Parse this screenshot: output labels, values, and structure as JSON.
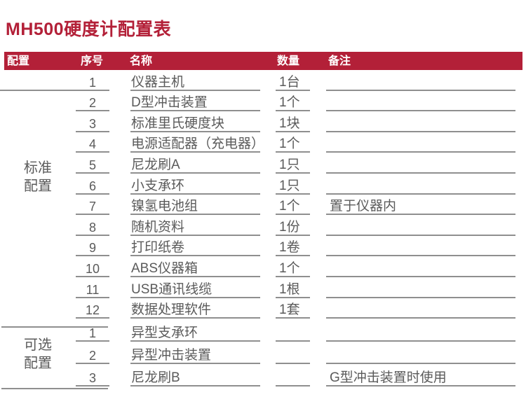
{
  "page": {
    "title": "MH500硬度计配置表"
  },
  "colors": {
    "accent_red": "#B32038",
    "text_gray": "#5A5A5A",
    "line_gray": "#8F8F8F",
    "header_text": "#FFFFFF"
  },
  "table": {
    "headers": [
      "配置",
      "序号",
      "名称",
      "数量",
      "备注"
    ],
    "groups": [
      {
        "label": "标准配置",
        "label_lines": [
          "标准",
          "配置"
        ],
        "rows": [
          {
            "no": "1",
            "name": "仪器主机",
            "qty": "1台",
            "note": ""
          },
          {
            "no": "2",
            "name": "D型冲击装置",
            "qty": "1个",
            "note": ""
          },
          {
            "no": "3",
            "name": "标准里氏硬度块",
            "qty": "1块",
            "note": ""
          },
          {
            "no": "4",
            "name": "电源适配器（充电器）",
            "qty": "1个",
            "note": ""
          },
          {
            "no": "5",
            "name": "尼龙刷A",
            "qty": "1只",
            "note": ""
          },
          {
            "no": "6",
            "name": "小支承环",
            "qty": "1只",
            "note": ""
          },
          {
            "no": "7",
            "name": "镍氢电池组",
            "qty": "1个",
            "note": "置于仪器内"
          },
          {
            "no": "8",
            "name": "随机资料",
            "qty": "1份",
            "note": ""
          },
          {
            "no": "9",
            "name": "打印纸卷",
            "qty": "1卷",
            "note": ""
          },
          {
            "no": "10",
            "name": "ABS仪器箱",
            "qty": "1个",
            "note": ""
          },
          {
            "no": "11",
            "name": "USB通讯线缆",
            "qty": "1根",
            "note": ""
          },
          {
            "no": "12",
            "name": "数据处理软件",
            "qty": "1套",
            "note": ""
          }
        ]
      },
      {
        "label": "可选配置",
        "label_lines": [
          "可选",
          "配置"
        ],
        "rows": [
          {
            "no": "1",
            "name": "异型支承环",
            "qty": "",
            "note": ""
          },
          {
            "no": "2",
            "name": "异型冲击装置",
            "qty": "",
            "note": ""
          },
          {
            "no": "3",
            "name": "尼龙刷B",
            "qty": "",
            "note": "G型冲击装置时使用"
          }
        ]
      }
    ]
  }
}
